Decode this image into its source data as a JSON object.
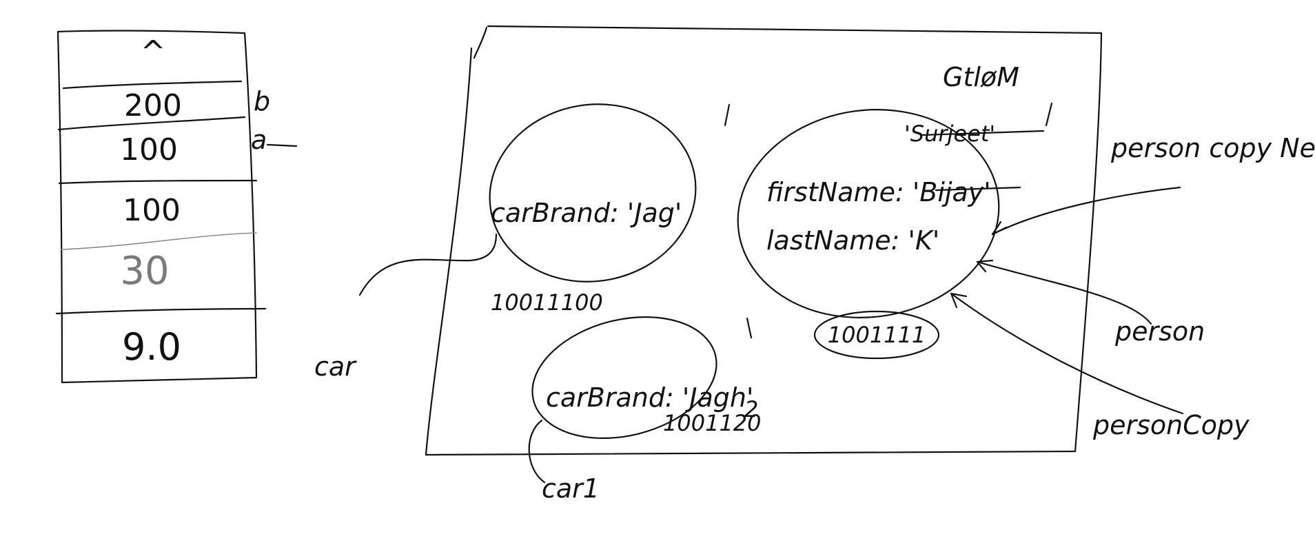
{
  "stack": {
    "cells": [
      {
        "value": "^",
        "label": ""
      },
      {
        "value": "200",
        "label": "b"
      },
      {
        "value": "100",
        "label": "a"
      },
      {
        "value": "100",
        "label": ""
      },
      {
        "value": "30",
        "label": ""
      },
      {
        "value": "9.0",
        "label": ""
      }
    ]
  },
  "heap": {
    "title": "GtløM",
    "car1": {
      "field": "carBrand: 'Jag'",
      "address": "10011100",
      "variable": "car"
    },
    "car2": {
      "field": "carBrand: 'Jagh'",
      "address": "1001120",
      "address_overwrite": "2",
      "variable": "car1"
    },
    "person": {
      "field_first": "firstName: 'Bijay'",
      "field_last": "lastName: 'K'",
      "crossed_value": "'Surjeet'",
      "address": "1001111",
      "refs": [
        "person copy New",
        "person",
        "personCopy"
      ]
    }
  }
}
